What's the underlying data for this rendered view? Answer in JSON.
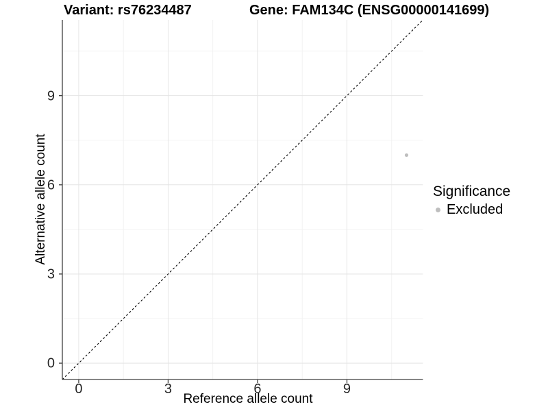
{
  "chart_data": {
    "type": "scatter",
    "title_left": "Variant: rs76234487",
    "title_right": "Gene: FAM134C (ENSG00000141699)",
    "xlabel": "Reference allele count",
    "ylabel": "Alternative allele count",
    "xlim": [
      -0.55,
      11.55
    ],
    "ylim": [
      -0.55,
      11.55
    ],
    "x_major_ticks": [
      0,
      3,
      6,
      9
    ],
    "x_tick_labels": [
      "0",
      "3",
      "6",
      "9"
    ],
    "x_minor_ticks": [
      1.5,
      4.5,
      7.5,
      10.5
    ],
    "y_major_ticks": [
      0,
      3,
      6,
      9
    ],
    "y_tick_labels": [
      "0",
      "3",
      "6",
      "9"
    ],
    "y_minor_ticks": [
      1.5,
      4.5,
      7.5,
      10.5
    ],
    "grid": true,
    "identity_line": {
      "style": "dashed",
      "color": "#000000",
      "from": [
        -0.55,
        -0.55
      ],
      "to": [
        11.55,
        11.55
      ]
    },
    "points": [
      {
        "x": 11,
        "y": 7,
        "series": "Excluded",
        "color": "#bebebe"
      }
    ],
    "legend": {
      "position": "right",
      "title": "Significance",
      "items": [
        {
          "label": "Excluded",
          "color": "#bebebe",
          "marker": "circle"
        }
      ]
    },
    "style": {
      "background_color": "#ffffff",
      "grid_major_color": "#e4e4e4",
      "grid_minor_color": "#f1f1f1",
      "axis_line_color": "#3f3f3f",
      "tick_mark_color": "#3f3f3f",
      "point_color": "#bebebe",
      "point_radius": 2.6
    }
  }
}
